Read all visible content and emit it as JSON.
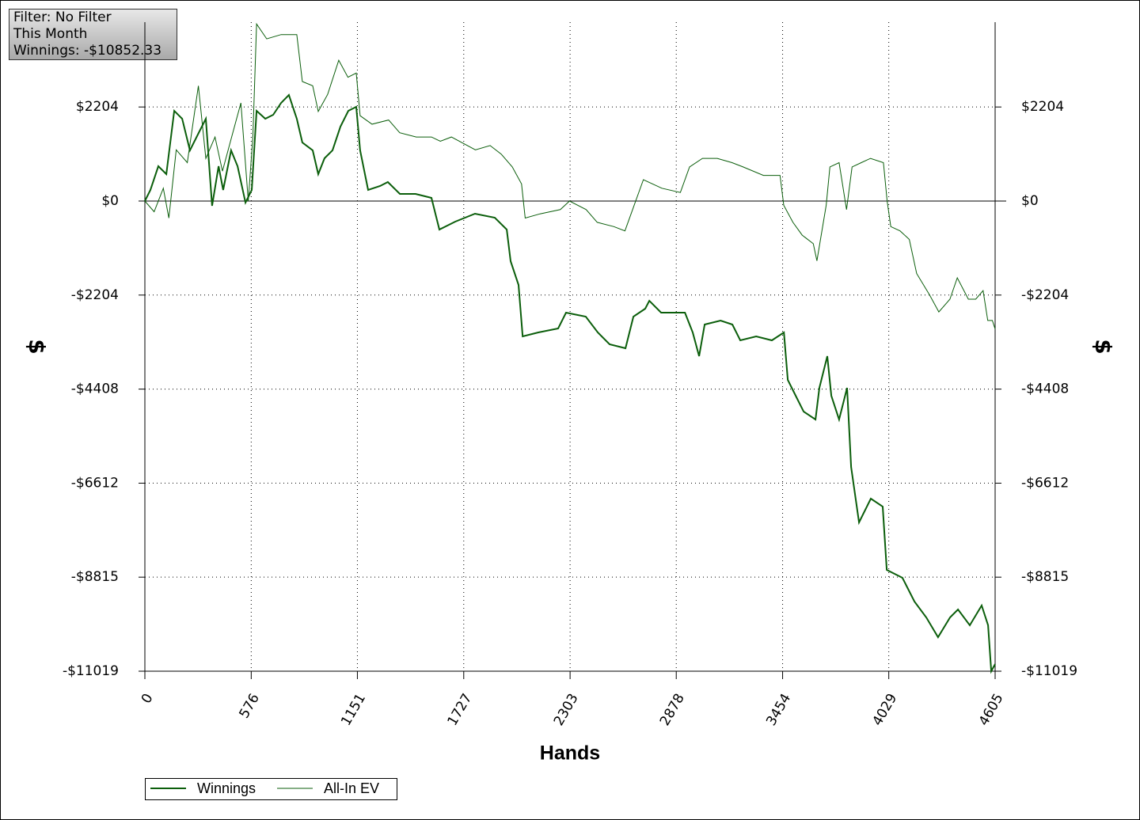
{
  "chart_data": {
    "type": "line",
    "annotations": [
      "Filter: No Filter",
      "This Month",
      "Winnings: -$10852.33"
    ],
    "xlabel": "Hands",
    "ylabel": "$",
    "xlim": [
      0,
      4605
    ],
    "xticks": [
      0,
      576,
      1151,
      1727,
      2303,
      2878,
      3454,
      4029,
      4605
    ],
    "ylim": [
      -11019,
      4192
    ],
    "yticks": [
      {
        "value": -11019,
        "label": "-$11019"
      },
      {
        "value": -8815,
        "label": "-$8815"
      },
      {
        "value": -6612,
        "label": "-$6612"
      },
      {
        "value": -4408,
        "label": "-$4408"
      },
      {
        "value": -2204,
        "label": "-$2204"
      },
      {
        "value": 0,
        "label": "$0"
      },
      {
        "value": 2204,
        "label": "$2204"
      }
    ],
    "grid": true,
    "legend": "bottom-left",
    "series": [
      {
        "name": "Winnings",
        "color": "#0b5e0b",
        "line_width": 2,
        "x": [
          0,
          30,
          73,
          116,
          159,
          202,
          244,
          287,
          330,
          364,
          399,
          424,
          467,
          502,
          545,
          579,
          605,
          652,
          695,
          738,
          780,
          823,
          853,
          909,
          939,
          973,
          1016,
          1059,
          1102,
          1145,
          1166,
          1209,
          1274,
          1316,
          1381,
          1466,
          1552,
          1595,
          1681,
          1788,
          1895,
          1960,
          1981,
          2024,
          2046,
          2131,
          2238,
          2281,
          2388,
          2453,
          2517,
          2603,
          2646,
          2710,
          2732,
          2796,
          2925,
          2967,
          3002,
          3032,
          3118,
          3182,
          3225,
          3311,
          3396,
          3461,
          3482,
          3525,
          3568,
          3632,
          3653,
          3696,
          3718,
          3760,
          3803,
          3825,
          3868,
          3932,
          3996,
          4018,
          4103,
          4168,
          4232,
          4296,
          4361,
          4404,
          4468,
          4532,
          4567,
          4584,
          4605
        ],
        "values": [
          0,
          260,
          816,
          630,
          2115,
          1929,
          1187,
          1558,
          1929,
          -111,
          816,
          260,
          1187,
          816,
          -37,
          260,
          2115,
          1929,
          2022,
          2300,
          2486,
          1929,
          1373,
          1187,
          630,
          1002,
          1187,
          1744,
          2115,
          2208,
          1187,
          260,
          352,
          445,
          167,
          167,
          74,
          -668,
          -482,
          -297,
          -390,
          -668,
          -1410,
          -1966,
          -3172,
          -3079,
          -2987,
          -2616,
          -2708,
          -3079,
          -3357,
          -3450,
          -2708,
          -2523,
          -2337,
          -2616,
          -2616,
          -3079,
          -3636,
          -2894,
          -2801,
          -2894,
          -3265,
          -3172,
          -3265,
          -3079,
          -4192,
          -4563,
          -4934,
          -5120,
          -4378,
          -3636,
          -4563,
          -5120,
          -4378,
          -6233,
          -7531,
          -6975,
          -7160,
          -8644,
          -8830,
          -9386,
          -9757,
          -10221,
          -9757,
          -9572,
          -9943,
          -9479,
          -9943,
          -11019,
          -10852
        ]
      },
      {
        "name": "All-In EV",
        "color": "#0b5e0b",
        "line_width": 1,
        "x": [
          0,
          50,
          100,
          130,
          170,
          230,
          290,
          330,
          380,
          420,
          470,
          520,
          560,
          585,
          605,
          660,
          738,
          823,
          853,
          909,
          939,
          990,
          1050,
          1100,
          1145,
          1166,
          1230,
          1320,
          1380,
          1470,
          1552,
          1600,
          1660,
          1790,
          1870,
          1930,
          1990,
          2040,
          2060,
          2140,
          2250,
          2300,
          2390,
          2450,
          2540,
          2600,
          2650,
          2700,
          2800,
          2900,
          2950,
          3020,
          3100,
          3180,
          3240,
          3350,
          3440,
          3460,
          3510,
          3560,
          3620,
          3640,
          3690,
          3710,
          3760,
          3800,
          3830,
          3880,
          3930,
          4000,
          4020,
          4040,
          4090,
          4140,
          4180,
          4250,
          4300,
          4360,
          4400,
          4460,
          4500,
          4540,
          4565,
          4590,
          4605
        ],
        "values": [
          0,
          -250,
          300,
          -400,
          1200,
          900,
          2700,
          1000,
          1500,
          700,
          1500,
          2300,
          0,
          1500,
          4150,
          3800,
          3900,
          3900,
          2800,
          2700,
          2100,
          2500,
          3300,
          2900,
          3000,
          2000,
          1800,
          1900,
          1600,
          1500,
          1500,
          1400,
          1500,
          1200,
          1300,
          1100,
          800,
          400,
          -400,
          -300,
          -200,
          0,
          -200,
          -500,
          -600,
          -700,
          -100,
          500,
          300,
          200,
          800,
          1000,
          1000,
          900,
          800,
          600,
          600,
          -100,
          -500,
          -800,
          -1000,
          -1400,
          -100,
          800,
          900,
          -200,
          800,
          900,
          1000,
          900,
          0,
          -600,
          -700,
          -900,
          -1700,
          -2200,
          -2600,
          -2300,
          -1800,
          -2300,
          -2300,
          -2100,
          -2800,
          -2800,
          -3000
        ]
      }
    ]
  }
}
